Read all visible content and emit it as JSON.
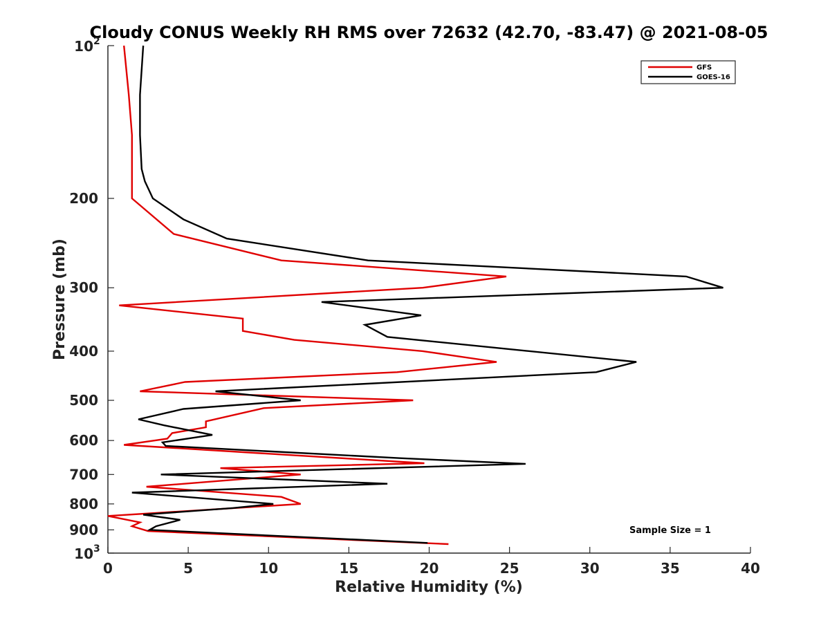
{
  "chart_data": {
    "type": "line",
    "title": "Cloudy CONUS Weekly RH RMS over 72632 (42.70, -83.47) @ 2021-08-05",
    "xlabel": "Relative Humidity (%)",
    "ylabel": "Pressure (mb)",
    "xlim": [
      0,
      40
    ],
    "ylim": [
      100,
      1000
    ],
    "yscale": "log",
    "y_reversed": true,
    "x_ticks": [
      0,
      5,
      10,
      15,
      20,
      25,
      30,
      35,
      40
    ],
    "x_tick_labels": [
      "0",
      "5",
      "10",
      "15",
      "20",
      "25",
      "30",
      "35",
      "40"
    ],
    "y_ticks": [
      {
        "value": 100,
        "label": "10",
        "exponent": "2"
      },
      {
        "value": 200,
        "label": "200"
      },
      {
        "value": 300,
        "label": "300"
      },
      {
        "value": 400,
        "label": "400"
      },
      {
        "value": 500,
        "label": "500"
      },
      {
        "value": 600,
        "label": "600"
      },
      {
        "value": 700,
        "label": "700"
      },
      {
        "value": 800,
        "label": "800"
      },
      {
        "value": 900,
        "label": "900"
      },
      {
        "value": 1000,
        "label": "10",
        "exponent": "3"
      }
    ],
    "grid": false,
    "legend_position": "top-right",
    "annotation": "Sample Size = 1",
    "series": [
      {
        "name": "GFS",
        "color": "#e00000",
        "points": [
          [
            1.0,
            100
          ],
          [
            1.3,
            125
          ],
          [
            1.5,
            150
          ],
          [
            1.5,
            175
          ],
          [
            1.5,
            200
          ],
          [
            4.1,
            235
          ],
          [
            10.8,
            265
          ],
          [
            24.8,
            285
          ],
          [
            19.6,
            300
          ],
          [
            0.7,
            325
          ],
          [
            8.4,
            345
          ],
          [
            8.4,
            365
          ],
          [
            11.6,
            380
          ],
          [
            19.6,
            400
          ],
          [
            24.2,
            420
          ],
          [
            18.0,
            440
          ],
          [
            4.8,
            460
          ],
          [
            2.0,
            480
          ],
          [
            19.0,
            500
          ],
          [
            9.7,
            518
          ],
          [
            6.1,
            550
          ],
          [
            6.1,
            565
          ],
          [
            4.0,
            580
          ],
          [
            3.7,
            595
          ],
          [
            1.0,
            612
          ],
          [
            19.7,
            665
          ],
          [
            7.0,
            680
          ],
          [
            12.0,
            700
          ],
          [
            2.4,
            740
          ],
          [
            10.8,
            775
          ],
          [
            12.0,
            800
          ],
          [
            0.0,
            845
          ],
          [
            2.0,
            870
          ],
          [
            1.5,
            885
          ],
          [
            2.5,
            905
          ],
          [
            21.2,
            960
          ]
        ]
      },
      {
        "name": "GOES-16",
        "color": "#000000",
        "points": [
          [
            2.2,
            100
          ],
          [
            2.0,
            125
          ],
          [
            2.0,
            150
          ],
          [
            2.1,
            175
          ],
          [
            2.3,
            185
          ],
          [
            2.8,
            200
          ],
          [
            4.7,
            220
          ],
          [
            7.4,
            240
          ],
          [
            16.2,
            265
          ],
          [
            36.0,
            285
          ],
          [
            38.3,
            300
          ],
          [
            13.3,
            320
          ],
          [
            19.5,
            340
          ],
          [
            16.0,
            355
          ],
          [
            17.4,
            375
          ],
          [
            32.9,
            420
          ],
          [
            30.4,
            440
          ],
          [
            6.7,
            480
          ],
          [
            12.0,
            500
          ],
          [
            4.7,
            520
          ],
          [
            1.9,
            545
          ],
          [
            3.5,
            560
          ],
          [
            6.5,
            585
          ],
          [
            3.4,
            605
          ],
          [
            3.6,
            615
          ],
          [
            18.2,
            650
          ],
          [
            26.0,
            667
          ],
          [
            3.3,
            700
          ],
          [
            17.4,
            730
          ],
          [
            1.5,
            760
          ],
          [
            10.3,
            800
          ],
          [
            7.8,
            815
          ],
          [
            2.2,
            840
          ],
          [
            4.5,
            860
          ],
          [
            3.0,
            885
          ],
          [
            2.6,
            900
          ],
          [
            19.9,
            955
          ]
        ]
      }
    ]
  }
}
